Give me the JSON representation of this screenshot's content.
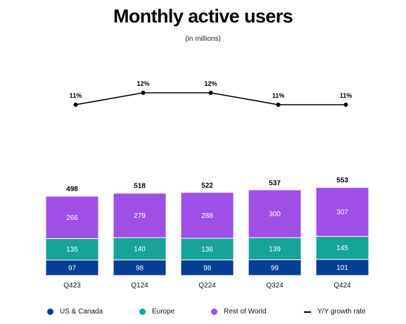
{
  "title": "Monthly active users",
  "subtitle": "(in millions)",
  "colors": {
    "us_canada": "#073d93",
    "europe": "#17a398",
    "rest_of_world": "#9d4fe6",
    "growth_line": "#000000"
  },
  "legend": [
    {
      "label": "US & Canada",
      "color": "#073d93",
      "kind": "dot"
    },
    {
      "label": "Europe",
      "color": "#17a398",
      "kind": "dot"
    },
    {
      "label": "Rest of World",
      "color": "#9d4fe6",
      "kind": "dot"
    },
    {
      "label": "Y/Y growth rate",
      "color": "#000000",
      "kind": "line"
    }
  ],
  "chart_data": {
    "type": "bar",
    "stacked": true,
    "categories": [
      "Q423",
      "Q124",
      "Q224",
      "Q324",
      "Q424"
    ],
    "series": [
      {
        "name": "US & Canada",
        "values": [
          97,
          98,
          98,
          99,
          101
        ],
        "color": "#073d93"
      },
      {
        "name": "Europe",
        "values": [
          135,
          140,
          136,
          139,
          145
        ],
        "color": "#17a398"
      },
      {
        "name": "Rest of World",
        "values": [
          266,
          279,
          288,
          300,
          307
        ],
        "color": "#9d4fe6"
      }
    ],
    "totals": [
      498,
      518,
      522,
      537,
      553
    ],
    "growth": {
      "name": "Y/Y growth rate",
      "type": "line",
      "values": [
        11,
        12,
        12,
        11,
        11
      ],
      "labels": [
        "11%",
        "12%",
        "12%",
        "11%",
        "11%"
      ]
    },
    "title": "Monthly active users",
    "subtitle": "(in millions)",
    "legend_position": "bottom",
    "grid": false
  }
}
